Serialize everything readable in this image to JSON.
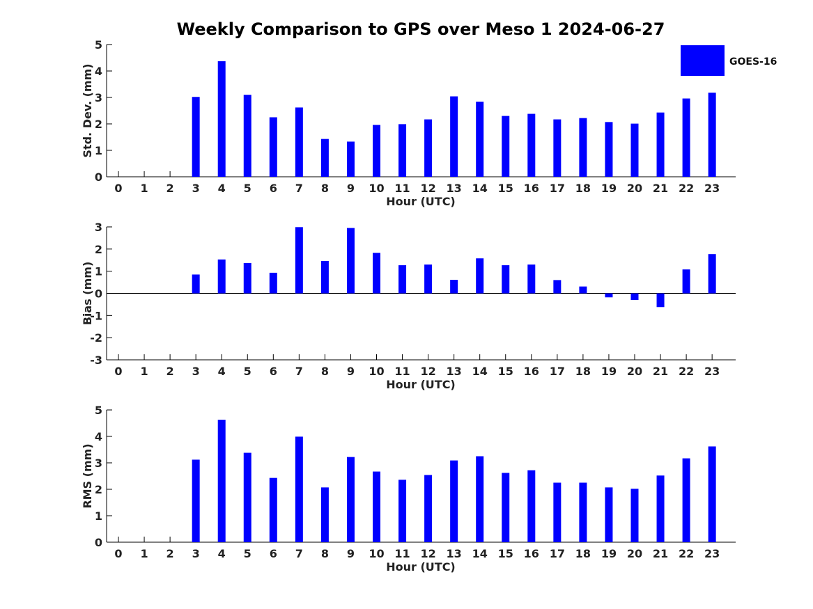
{
  "title": "Weekly Comparison to GPS over Meso 1 2024-06-27",
  "legend": {
    "label": "GOES-16",
    "color": "#0000ff"
  },
  "chart_data": [
    {
      "type": "bar",
      "title": "Weekly Comparison to GPS over Meso 1 2024-06-27",
      "xlabel": "Hour (UTC)",
      "ylabel": "Std. Dev. (mm)",
      "ylim": [
        0,
        5
      ],
      "yticks": [
        "0",
        "1",
        "2",
        "3",
        "4",
        "5"
      ],
      "categories": [
        "0",
        "1",
        "2",
        "3",
        "4",
        "5",
        "6",
        "7",
        "8",
        "9",
        "10",
        "11",
        "12",
        "13",
        "14",
        "15",
        "16",
        "17",
        "18",
        "19",
        "20",
        "21",
        "22",
        "23"
      ],
      "series": [
        {
          "name": "GOES-16",
          "color": "#0000ff",
          "values": [
            null,
            null,
            null,
            3.02,
            4.37,
            3.1,
            2.25,
            2.62,
            1.43,
            1.33,
            1.96,
            1.99,
            2.17,
            3.04,
            2.84,
            2.3,
            2.38,
            2.17,
            2.22,
            2.07,
            2.01,
            2.43,
            2.96,
            3.18
          ]
        }
      ]
    },
    {
      "type": "bar",
      "xlabel": "Hour (UTC)",
      "ylabel": "Bias (mm)",
      "ylim": [
        -3,
        3
      ],
      "yticks": [
        "-3",
        "-2",
        "-1",
        "0",
        "1",
        "2",
        "3"
      ],
      "categories": [
        "0",
        "1",
        "2",
        "3",
        "4",
        "5",
        "6",
        "7",
        "8",
        "9",
        "10",
        "11",
        "12",
        "13",
        "14",
        "15",
        "16",
        "17",
        "18",
        "19",
        "20",
        "21",
        "22",
        "23"
      ],
      "series": [
        {
          "name": "GOES-16",
          "color": "#0000ff",
          "values": [
            null,
            null,
            null,
            0.85,
            1.53,
            1.37,
            0.93,
            2.99,
            1.46,
            2.95,
            1.83,
            1.27,
            1.3,
            0.61,
            1.58,
            1.27,
            1.3,
            0.6,
            0.31,
            -0.18,
            -0.3,
            -0.62,
            1.08,
            1.77
          ]
        }
      ]
    },
    {
      "type": "bar",
      "xlabel": "Hour (UTC)",
      "ylabel": "RMS (mm)",
      "ylim": [
        0,
        5
      ],
      "yticks": [
        "0",
        "1",
        "2",
        "3",
        "4",
        "5"
      ],
      "categories": [
        "0",
        "1",
        "2",
        "3",
        "4",
        "5",
        "6",
        "7",
        "8",
        "9",
        "10",
        "11",
        "12",
        "13",
        "14",
        "15",
        "16",
        "17",
        "18",
        "19",
        "20",
        "21",
        "22",
        "23"
      ],
      "series": [
        {
          "name": "GOES-16",
          "color": "#0000ff",
          "values": [
            null,
            null,
            null,
            3.12,
            4.63,
            3.38,
            2.43,
            3.99,
            2.07,
            3.22,
            2.67,
            2.36,
            2.54,
            3.09,
            3.25,
            2.62,
            2.72,
            2.25,
            2.25,
            2.07,
            2.02,
            2.52,
            3.17,
            3.62
          ]
        }
      ]
    }
  ]
}
